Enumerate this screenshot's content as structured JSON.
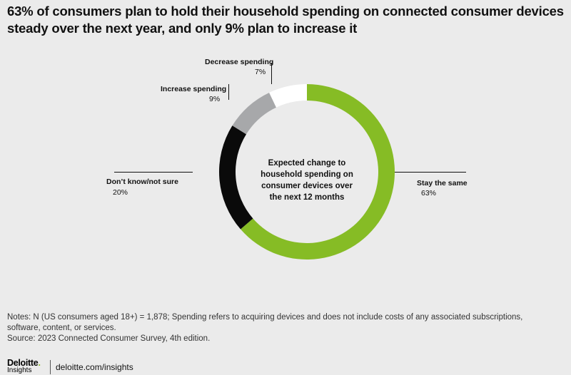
{
  "title_lines": [
    "63% of consumers plan to hold their household spending on connected consumer devices",
    "steady over the next year, and only 9% plan to increase it"
  ],
  "chart_data": {
    "type": "pie",
    "variant": "donut",
    "center_label_lines": [
      "Expected change to",
      "household spending on",
      "consumer devices over",
      "the next 12 months"
    ],
    "slices": [
      {
        "label": "Stay the same",
        "value": 63,
        "display": "63%",
        "color": "#86bc25"
      },
      {
        "label": "Don’t know/not sure",
        "value": 20,
        "display": "20%",
        "color": "#0a0a0a"
      },
      {
        "label": "Increase spending",
        "value": 9,
        "display": "9%",
        "color": "#a7a8aa"
      },
      {
        "label": "Decrease spending",
        "value": 7,
        "display": "7%",
        "color": "#ffffff"
      }
    ],
    "start": "top",
    "direction": "clockwise",
    "background_color": "#ebebeb"
  },
  "notes_lines": [
    "Notes: N (US consumers aged 18+) = 1,878; Spending refers to acquiring devices and does not include costs of any associated subscriptions,",
    "software, content, or services.",
    "Source: 2023 Connected Consumer Survey, 4th edition."
  ],
  "footer": {
    "logo_text": "Deloitte",
    "logo_dot": ".",
    "logo_sub": "Insights",
    "link_text": "deloitte.com/insights",
    "brand_color": "#86bc25"
  }
}
